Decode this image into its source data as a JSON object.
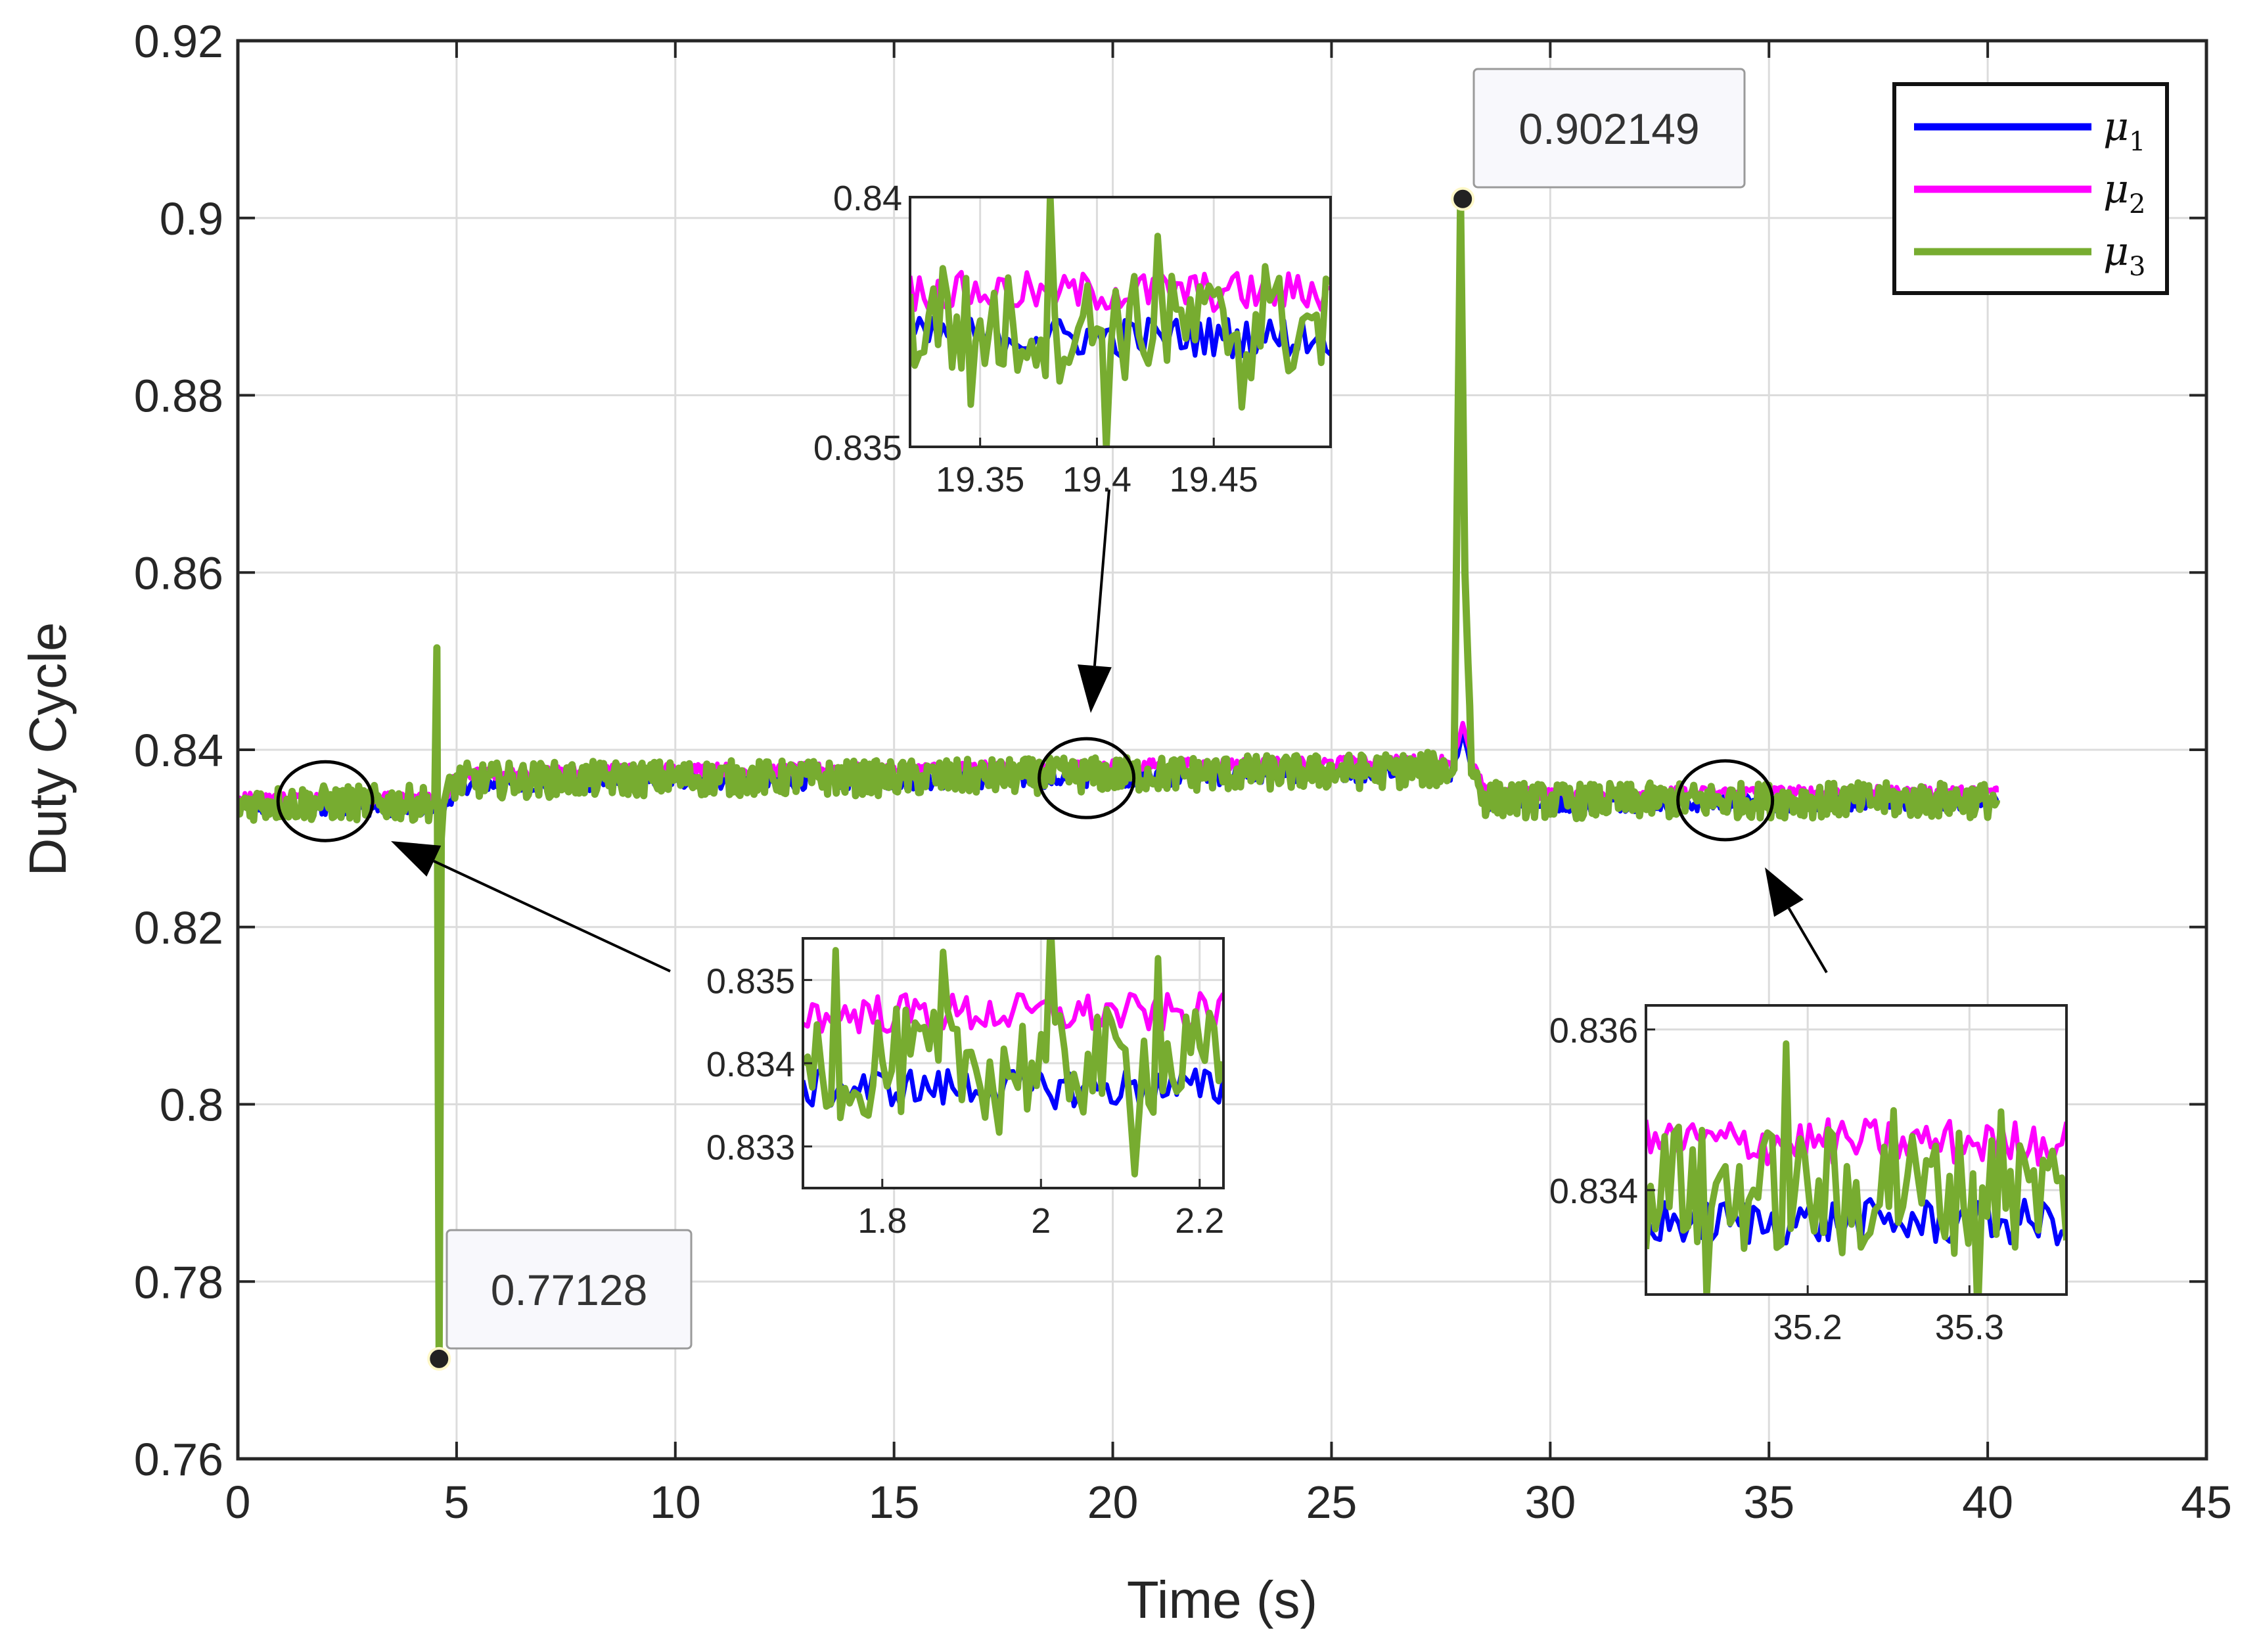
{
  "chart_data": {
    "type": "line",
    "xlabel": "Time (s)",
    "ylabel": "Duty Cycle",
    "xlim": [
      0,
      45
    ],
    "ylim": [
      0.76,
      0.92
    ],
    "xticks": [
      0,
      5,
      10,
      15,
      20,
      25,
      30,
      35,
      40,
      45
    ],
    "yticks": [
      0.76,
      0.78,
      0.8,
      0.82,
      0.84,
      0.86,
      0.88,
      0.9,
      0.92
    ],
    "xtick_labels": [
      "0",
      "5",
      "10",
      "15",
      "20",
      "25",
      "30",
      "35",
      "40",
      "45"
    ],
    "ytick_labels": [
      "0.76",
      "0.78",
      "0.8",
      "0.82",
      "0.84",
      "0.86",
      "0.88",
      "0.9",
      "0.92"
    ],
    "grid": true,
    "legend_position": "top-right",
    "series": [
      {
        "name": "μ1",
        "label_base": "μ",
        "label_sub": "1",
        "color": "#0000ff",
        "x": [
          0,
          4.5,
          4.6,
          5,
          10,
          15,
          20,
          25,
          27.8,
          28.0,
          28.2,
          28.5,
          30,
          35,
          40.2
        ],
        "y": [
          0.8335,
          0.8335,
          0.832,
          0.836,
          0.8365,
          0.8365,
          0.8368,
          0.8372,
          0.8375,
          0.842,
          0.838,
          0.8342,
          0.834,
          0.834,
          0.8342
        ]
      },
      {
        "name": "μ2",
        "label_base": "μ",
        "label_sub": "2",
        "color": "#ff00ff",
        "x": [
          0,
          4.5,
          4.6,
          5,
          10,
          15,
          20,
          25,
          27.8,
          28.0,
          28.2,
          28.5,
          30,
          35,
          40.2
        ],
        "y": [
          0.8345,
          0.8345,
          0.833,
          0.8372,
          0.8378,
          0.8378,
          0.8382,
          0.8385,
          0.8388,
          0.843,
          0.839,
          0.8352,
          0.835,
          0.8352,
          0.8352
        ]
      },
      {
        "name": "μ3",
        "label_base": "μ",
        "label_sub": "3",
        "color": "#77ac30",
        "x": [
          0,
          4.5,
          4.55,
          4.6,
          4.65,
          4.7,
          5,
          10,
          15,
          20,
          25,
          27.8,
          27.95,
          28.05,
          28.2,
          28.5,
          30,
          35,
          40.2
        ],
        "y": [
          0.834,
          0.834,
          0.8515,
          0.77128,
          0.83,
          0.834,
          0.8365,
          0.8368,
          0.8368,
          0.8372,
          0.8375,
          0.8378,
          0.902149,
          0.86,
          0.838,
          0.8345,
          0.8342,
          0.8343,
          0.8343
        ]
      }
    ],
    "datatips": [
      {
        "x": 4.6,
        "y": 0.77128,
        "label": "0.77128"
      },
      {
        "x": 28.0,
        "y": 0.902149,
        "label": "0.902149"
      }
    ],
    "insets": [
      {
        "name": "inset-top",
        "center_x": 19.4,
        "center_y": 0.8368,
        "xlim": [
          19.32,
          19.5
        ],
        "ylim": [
          0.835,
          0.84
        ],
        "xticks": [
          19.35,
          19.4,
          19.45
        ],
        "xtick_labels": [
          "19.35",
          "19.4",
          "19.45"
        ],
        "yticks": [
          0.835,
          0.84
        ],
        "ytick_labels": [
          "0.835",
          "0.84"
        ],
        "means": [
          0.8372,
          0.8381,
          0.8374
        ]
      },
      {
        "name": "inset-middle",
        "center_x": 2.0,
        "center_y": 0.8342,
        "xlim": [
          1.7,
          2.23
        ],
        "ylim": [
          0.8325,
          0.8355
        ],
        "xticks": [
          1.8,
          2.0,
          2.2
        ],
        "xtick_labels": [
          "1.8",
          "2",
          "2.2"
        ],
        "yticks": [
          0.833,
          0.834,
          0.835
        ],
        "ytick_labels": [
          "0.833",
          "0.834",
          "0.835"
        ],
        "means": [
          0.8337,
          0.8346,
          0.834
        ]
      },
      {
        "name": "inset-right",
        "center_x": 34.0,
        "center_y": 0.8343,
        "xlim": [
          35.1,
          35.36
        ],
        "ylim": [
          0.8327,
          0.8363
        ],
        "xticks": [
          35.2,
          35.3
        ],
        "xtick_labels": [
          "35.2",
          "35.3"
        ],
        "yticks": [
          0.834,
          0.836
        ],
        "ytick_labels": [
          "0.834",
          "0.836"
        ],
        "means": [
          0.8336,
          0.8346,
          0.834
        ]
      }
    ]
  }
}
